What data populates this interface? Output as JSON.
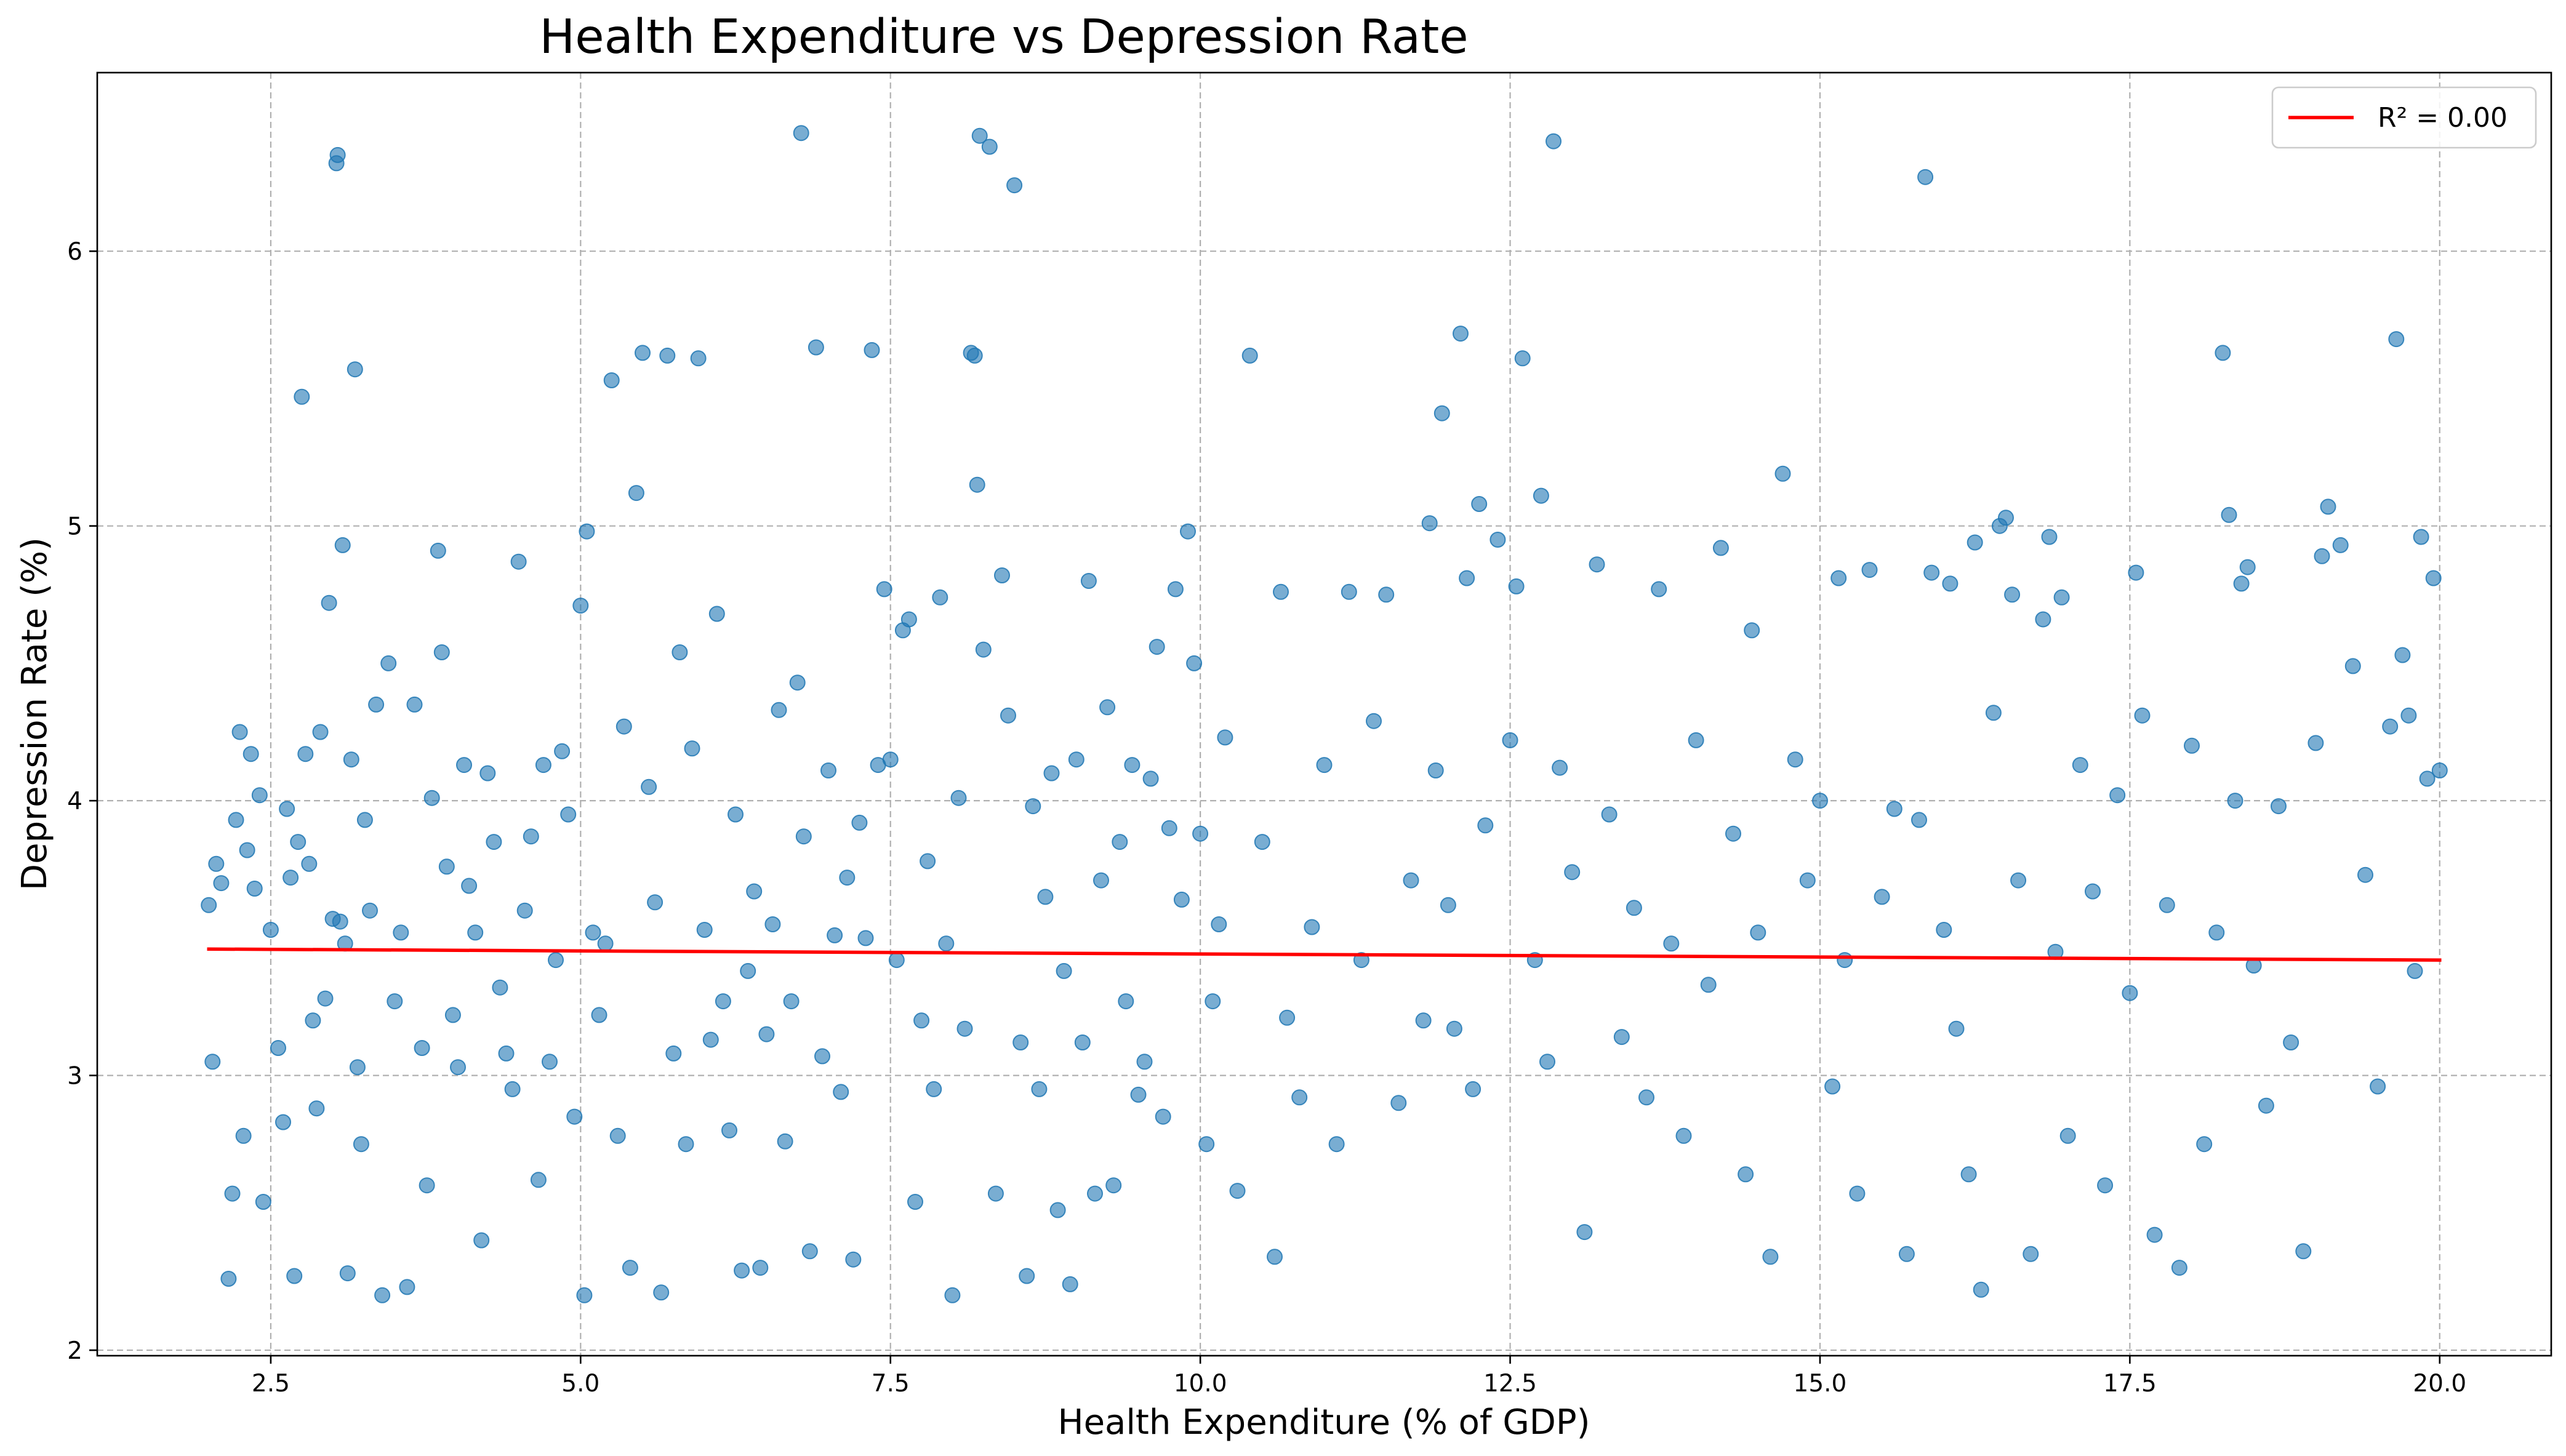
{
  "chart_data": {
    "type": "scatter",
    "title": "Health Expenditure vs Depression Rate",
    "xlabel": "Health Expenditure (% of GDP)",
    "ylabel": "Depression Rate (%)",
    "xlim": [
      1.1,
      20.9
    ],
    "ylim": [
      1.98,
      6.65
    ],
    "x_ticks": [
      2.5,
      5.0,
      7.5,
      10.0,
      12.5,
      15.0,
      17.5,
      20.0
    ],
    "x_tick_labels": [
      "2.5",
      "5.0",
      "7.5",
      "10.0",
      "12.5",
      "15.0",
      "17.5",
      "20.0"
    ],
    "y_ticks": [
      2,
      3,
      4,
      5,
      6
    ],
    "y_tick_labels": [
      "2",
      "3",
      "4",
      "5",
      "6"
    ],
    "grid": true,
    "legend": {
      "position": "top-right",
      "entries": [
        "R² = 0.00"
      ]
    },
    "colors": {
      "points": "#1f77b4",
      "trend": "#ff0000"
    },
    "trend_line": {
      "label": "R² = 0.00",
      "x": [
        2.0,
        20.0
      ],
      "y": [
        3.46,
        3.42
      ]
    },
    "series": [
      {
        "points": [
          [
            2.0,
            3.62
          ],
          [
            2.03,
            3.05
          ],
          [
            2.06,
            3.77
          ],
          [
            2.1,
            3.7
          ],
          [
            2.16,
            2.26
          ],
          [
            2.19,
            2.57
          ],
          [
            2.22,
            3.93
          ],
          [
            2.25,
            4.25
          ],
          [
            2.28,
            2.78
          ],
          [
            2.31,
            3.82
          ],
          [
            2.34,
            4.17
          ],
          [
            2.37,
            3.68
          ],
          [
            2.41,
            4.02
          ],
          [
            2.44,
            2.54
          ],
          [
            2.5,
            3.53
          ],
          [
            2.56,
            3.1
          ],
          [
            2.6,
            2.83
          ],
          [
            2.63,
            3.97
          ],
          [
            2.66,
            3.72
          ],
          [
            2.69,
            2.27
          ],
          [
            2.72,
            3.85
          ],
          [
            2.75,
            5.47
          ],
          [
            2.78,
            4.17
          ],
          [
            2.81,
            3.77
          ],
          [
            2.84,
            3.2
          ],
          [
            2.87,
            2.88
          ],
          [
            2.9,
            4.25
          ],
          [
            2.94,
            3.28
          ],
          [
            2.97,
            4.72
          ],
          [
            3.0,
            3.57
          ],
          [
            3.03,
            6.32
          ],
          [
            3.04,
            6.35
          ],
          [
            3.06,
            3.56
          ],
          [
            3.08,
            4.93
          ],
          [
            3.1,
            3.48
          ],
          [
            3.12,
            2.28
          ],
          [
            3.15,
            4.15
          ],
          [
            3.18,
            5.57
          ],
          [
            3.2,
            3.03
          ],
          [
            3.23,
            2.75
          ],
          [
            3.26,
            3.93
          ],
          [
            3.3,
            3.6
          ],
          [
            3.35,
            4.35
          ],
          [
            3.4,
            2.2
          ],
          [
            3.45,
            4.5
          ],
          [
            3.5,
            3.27
          ],
          [
            3.55,
            3.52
          ],
          [
            3.6,
            2.23
          ],
          [
            3.66,
            4.35
          ],
          [
            3.72,
            3.1
          ],
          [
            3.76,
            2.6
          ],
          [
            3.8,
            4.01
          ],
          [
            3.85,
            4.91
          ],
          [
            3.88,
            4.54
          ],
          [
            3.92,
            3.76
          ],
          [
            3.97,
            3.22
          ],
          [
            4.01,
            3.03
          ],
          [
            4.06,
            4.13
          ],
          [
            4.1,
            3.69
          ],
          [
            4.15,
            3.52
          ],
          [
            4.2,
            2.4
          ],
          [
            4.25,
            4.1
          ],
          [
            4.3,
            3.85
          ],
          [
            4.35,
            3.32
          ],
          [
            4.4,
            3.08
          ],
          [
            4.45,
            2.95
          ],
          [
            4.5,
            4.87
          ],
          [
            4.55,
            3.6
          ],
          [
            4.6,
            3.87
          ],
          [
            4.66,
            2.62
          ],
          [
            4.7,
            4.13
          ],
          [
            4.75,
            3.05
          ],
          [
            4.8,
            3.42
          ],
          [
            4.85,
            4.18
          ],
          [
            4.9,
            3.95
          ],
          [
            4.95,
            2.85
          ],
          [
            5.0,
            4.71
          ],
          [
            5.03,
            2.2
          ],
          [
            5.05,
            4.98
          ],
          [
            5.1,
            3.52
          ],
          [
            5.15,
            3.22
          ],
          [
            5.2,
            3.48
          ],
          [
            5.25,
            5.53
          ],
          [
            5.3,
            2.78
          ],
          [
            5.35,
            4.27
          ],
          [
            5.4,
            2.3
          ],
          [
            5.45,
            5.12
          ],
          [
            5.5,
            5.63
          ],
          [
            5.55,
            4.05
          ],
          [
            5.6,
            3.63
          ],
          [
            5.65,
            2.21
          ],
          [
            5.7,
            5.62
          ],
          [
            5.75,
            3.08
          ],
          [
            5.8,
            4.54
          ],
          [
            5.85,
            2.75
          ],
          [
            5.9,
            4.19
          ],
          [
            5.95,
            5.61
          ],
          [
            6.0,
            3.53
          ],
          [
            6.05,
            3.13
          ],
          [
            6.1,
            4.68
          ],
          [
            6.15,
            3.27
          ],
          [
            6.2,
            2.8
          ],
          [
            6.25,
            3.95
          ],
          [
            6.3,
            2.29
          ],
          [
            6.35,
            3.38
          ],
          [
            6.4,
            3.67
          ],
          [
            6.45,
            2.3
          ],
          [
            6.5,
            3.15
          ],
          [
            6.55,
            3.55
          ],
          [
            6.6,
            4.33
          ],
          [
            6.65,
            2.76
          ],
          [
            6.7,
            3.27
          ],
          [
            6.75,
            4.43
          ],
          [
            6.78,
            6.43
          ],
          [
            6.8,
            3.87
          ],
          [
            6.85,
            2.36
          ],
          [
            6.9,
            5.65
          ],
          [
            6.95,
            3.07
          ],
          [
            7.0,
            4.11
          ],
          [
            7.05,
            3.51
          ],
          [
            7.1,
            2.94
          ],
          [
            7.15,
            3.72
          ],
          [
            7.2,
            2.33
          ],
          [
            7.25,
            3.92
          ],
          [
            7.3,
            3.5
          ],
          [
            7.35,
            5.64
          ],
          [
            7.4,
            4.13
          ],
          [
            7.45,
            4.77
          ],
          [
            7.5,
            4.15
          ],
          [
            7.55,
            3.42
          ],
          [
            7.6,
            4.62
          ],
          [
            7.65,
            4.66
          ],
          [
            7.7,
            2.54
          ],
          [
            7.75,
            3.2
          ],
          [
            7.8,
            3.78
          ],
          [
            7.85,
            2.95
          ],
          [
            7.9,
            4.74
          ],
          [
            7.95,
            3.48
          ],
          [
            8.0,
            2.2
          ],
          [
            8.05,
            4.01
          ],
          [
            8.1,
            3.17
          ],
          [
            8.15,
            5.63
          ],
          [
            8.18,
            5.62
          ],
          [
            8.2,
            5.15
          ],
          [
            8.22,
            6.42
          ],
          [
            8.25,
            4.55
          ],
          [
            8.3,
            6.38
          ],
          [
            8.35,
            2.57
          ],
          [
            8.4,
            4.82
          ],
          [
            8.45,
            4.31
          ],
          [
            8.5,
            6.24
          ],
          [
            8.55,
            3.12
          ],
          [
            8.6,
            2.27
          ],
          [
            8.65,
            3.98
          ],
          [
            8.7,
            2.95
          ],
          [
            8.75,
            3.65
          ],
          [
            8.8,
            4.1
          ],
          [
            8.85,
            2.51
          ],
          [
            8.9,
            3.38
          ],
          [
            8.95,
            2.24
          ],
          [
            9.0,
            4.15
          ],
          [
            9.05,
            3.12
          ],
          [
            9.1,
            4.8
          ],
          [
            9.15,
            2.57
          ],
          [
            9.2,
            3.71
          ],
          [
            9.25,
            4.34
          ],
          [
            9.3,
            2.6
          ],
          [
            9.35,
            3.85
          ],
          [
            9.4,
            3.27
          ],
          [
            9.45,
            4.13
          ],
          [
            9.5,
            2.93
          ],
          [
            9.55,
            3.05
          ],
          [
            9.6,
            4.08
          ],
          [
            9.65,
            4.56
          ],
          [
            9.7,
            2.85
          ],
          [
            9.75,
            3.9
          ],
          [
            9.8,
            4.77
          ],
          [
            9.85,
            3.64
          ],
          [
            9.9,
            4.98
          ],
          [
            9.95,
            4.5
          ],
          [
            10.0,
            3.88
          ],
          [
            10.05,
            2.75
          ],
          [
            10.1,
            3.27
          ],
          [
            10.15,
            3.55
          ],
          [
            10.2,
            4.23
          ],
          [
            10.3,
            2.58
          ],
          [
            10.4,
            5.62
          ],
          [
            10.5,
            3.85
          ],
          [
            10.6,
            2.34
          ],
          [
            10.65,
            4.76
          ],
          [
            10.7,
            3.21
          ],
          [
            10.8,
            2.92
          ],
          [
            10.9,
            3.54
          ],
          [
            11.0,
            4.13
          ],
          [
            11.1,
            2.75
          ],
          [
            11.2,
            4.76
          ],
          [
            11.3,
            3.42
          ],
          [
            11.4,
            4.29
          ],
          [
            11.5,
            4.75
          ],
          [
            11.6,
            2.9
          ],
          [
            11.7,
            3.71
          ],
          [
            11.8,
            3.2
          ],
          [
            11.85,
            5.01
          ],
          [
            11.9,
            4.11
          ],
          [
            11.95,
            5.41
          ],
          [
            12.0,
            3.62
          ],
          [
            12.05,
            3.17
          ],
          [
            12.1,
            5.7
          ],
          [
            12.15,
            4.81
          ],
          [
            12.2,
            2.95
          ],
          [
            12.25,
            5.08
          ],
          [
            12.3,
            3.91
          ],
          [
            12.4,
            4.95
          ],
          [
            12.5,
            4.22
          ],
          [
            12.55,
            4.78
          ],
          [
            12.6,
            5.61
          ],
          [
            12.7,
            3.42
          ],
          [
            12.75,
            5.11
          ],
          [
            12.8,
            3.05
          ],
          [
            12.85,
            6.4
          ],
          [
            12.9,
            4.12
          ],
          [
            13.0,
            3.74
          ],
          [
            13.1,
            2.43
          ],
          [
            13.2,
            4.86
          ],
          [
            13.3,
            3.95
          ],
          [
            13.4,
            3.14
          ],
          [
            13.5,
            3.61
          ],
          [
            13.6,
            2.92
          ],
          [
            13.7,
            4.77
          ],
          [
            13.8,
            3.48
          ],
          [
            13.9,
            2.78
          ],
          [
            14.0,
            4.22
          ],
          [
            14.1,
            3.33
          ],
          [
            14.2,
            4.92
          ],
          [
            14.3,
            3.88
          ],
          [
            14.4,
            2.64
          ],
          [
            14.45,
            4.62
          ],
          [
            14.5,
            3.52
          ],
          [
            14.6,
            2.34
          ],
          [
            14.7,
            5.19
          ],
          [
            14.8,
            4.15
          ],
          [
            14.9,
            3.71
          ],
          [
            15.0,
            4.0
          ],
          [
            15.1,
            2.96
          ],
          [
            15.15,
            4.81
          ],
          [
            15.2,
            3.42
          ],
          [
            15.3,
            2.57
          ],
          [
            15.4,
            4.84
          ],
          [
            15.5,
            3.65
          ],
          [
            15.6,
            3.97
          ],
          [
            15.7,
            2.35
          ],
          [
            15.8,
            3.93
          ],
          [
            15.85,
            6.27
          ],
          [
            15.9,
            4.83
          ],
          [
            16.0,
            3.53
          ],
          [
            16.05,
            4.79
          ],
          [
            16.1,
            3.17
          ],
          [
            16.2,
            2.64
          ],
          [
            16.25,
            4.94
          ],
          [
            16.3,
            2.22
          ],
          [
            16.4,
            4.32
          ],
          [
            16.45,
            5.0
          ],
          [
            16.5,
            5.03
          ],
          [
            16.55,
            4.75
          ],
          [
            16.6,
            3.71
          ],
          [
            16.7,
            2.35
          ],
          [
            16.8,
            4.66
          ],
          [
            16.85,
            4.96
          ],
          [
            16.9,
            3.45
          ],
          [
            16.95,
            4.74
          ],
          [
            17.0,
            2.78
          ],
          [
            17.1,
            4.13
          ],
          [
            17.2,
            3.67
          ],
          [
            17.3,
            2.6
          ],
          [
            17.4,
            4.02
          ],
          [
            17.5,
            3.3
          ],
          [
            17.55,
            4.83
          ],
          [
            17.6,
            4.31
          ],
          [
            17.7,
            2.42
          ],
          [
            17.8,
            3.62
          ],
          [
            17.9,
            2.3
          ],
          [
            18.0,
            4.2
          ],
          [
            18.1,
            2.75
          ],
          [
            18.2,
            3.52
          ],
          [
            18.25,
            5.63
          ],
          [
            18.3,
            5.04
          ],
          [
            18.35,
            4.0
          ],
          [
            18.4,
            4.79
          ],
          [
            18.45,
            4.85
          ],
          [
            18.5,
            3.4
          ],
          [
            18.6,
            2.89
          ],
          [
            18.7,
            3.98
          ],
          [
            18.8,
            3.12
          ],
          [
            18.9,
            2.36
          ],
          [
            19.0,
            4.21
          ],
          [
            19.05,
            4.89
          ],
          [
            19.1,
            5.07
          ],
          [
            19.2,
            4.93
          ],
          [
            19.3,
            4.49
          ],
          [
            19.4,
            3.73
          ],
          [
            19.5,
            2.96
          ],
          [
            19.6,
            4.27
          ],
          [
            19.65,
            5.68
          ],
          [
            19.7,
            4.53
          ],
          [
            19.75,
            4.31
          ],
          [
            19.8,
            3.38
          ],
          [
            19.85,
            4.96
          ],
          [
            19.9,
            4.08
          ],
          [
            19.95,
            4.81
          ],
          [
            20.0,
            4.11
          ]
        ]
      }
    ]
  }
}
